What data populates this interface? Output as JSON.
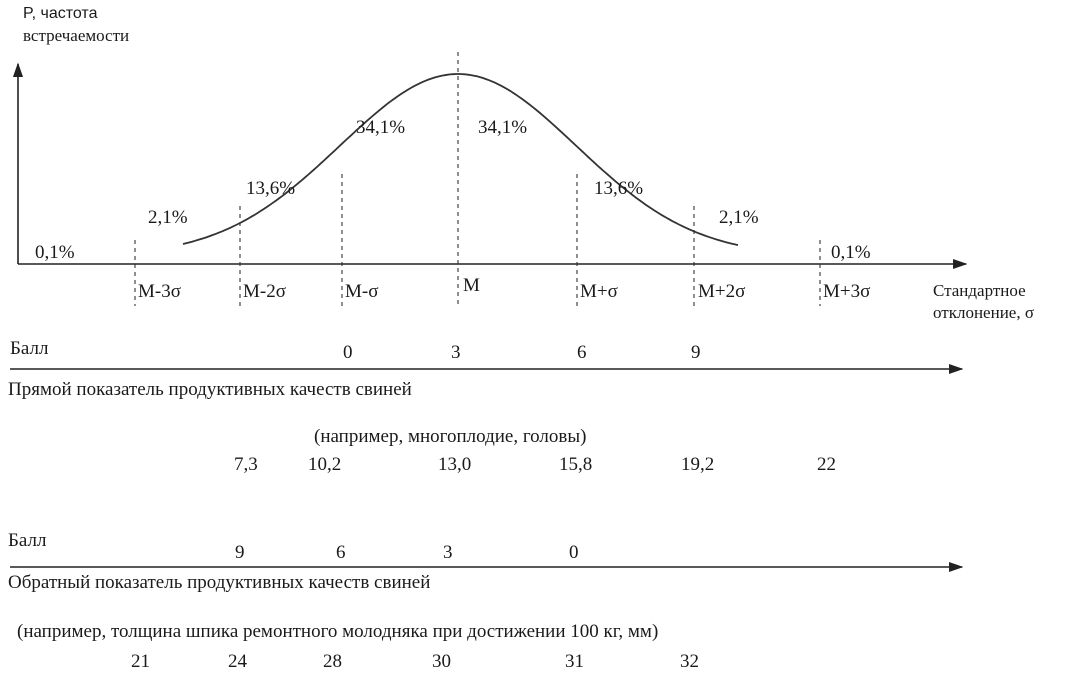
{
  "bell_chart": {
    "y_axis_label_line1": "P, частота",
    "y_axis_label_line2": "встречаемости",
    "x_axis_label_line1": "Стандартное",
    "x_axis_label_line2": "отклонение, σ",
    "percentages": [
      "0,1%",
      "2,1%",
      "13,6%",
      "34,1%",
      "34,1%",
      "13,6%",
      "2,1%",
      "0,1%"
    ],
    "sigma_labels": [
      "M-3σ",
      "M-2σ",
      "M-σ",
      "M",
      "M+σ",
      "M+2σ",
      "M+3σ"
    ]
  },
  "direct_scale": {
    "score_label": "Балл",
    "scores": [
      "0",
      "3",
      "6",
      "9"
    ],
    "title": "Прямой показатель продуктивных качеств свиней",
    "example": "(например, многоплодие, головы)",
    "values": [
      "7,3",
      "10,2",
      "13,0",
      "15,8",
      "19,2",
      "22"
    ]
  },
  "reverse_scale": {
    "score_label": "Балл",
    "scores": [
      "9",
      "6",
      "3",
      "0"
    ],
    "title": "Обратный показатель продуктивных качеств свиней",
    "example": "(например, толщина шпика ремонтного молодняка при достижении 100 кг, мм)",
    "values": [
      "21",
      "24",
      "28",
      "30",
      "31",
      "32"
    ]
  }
}
